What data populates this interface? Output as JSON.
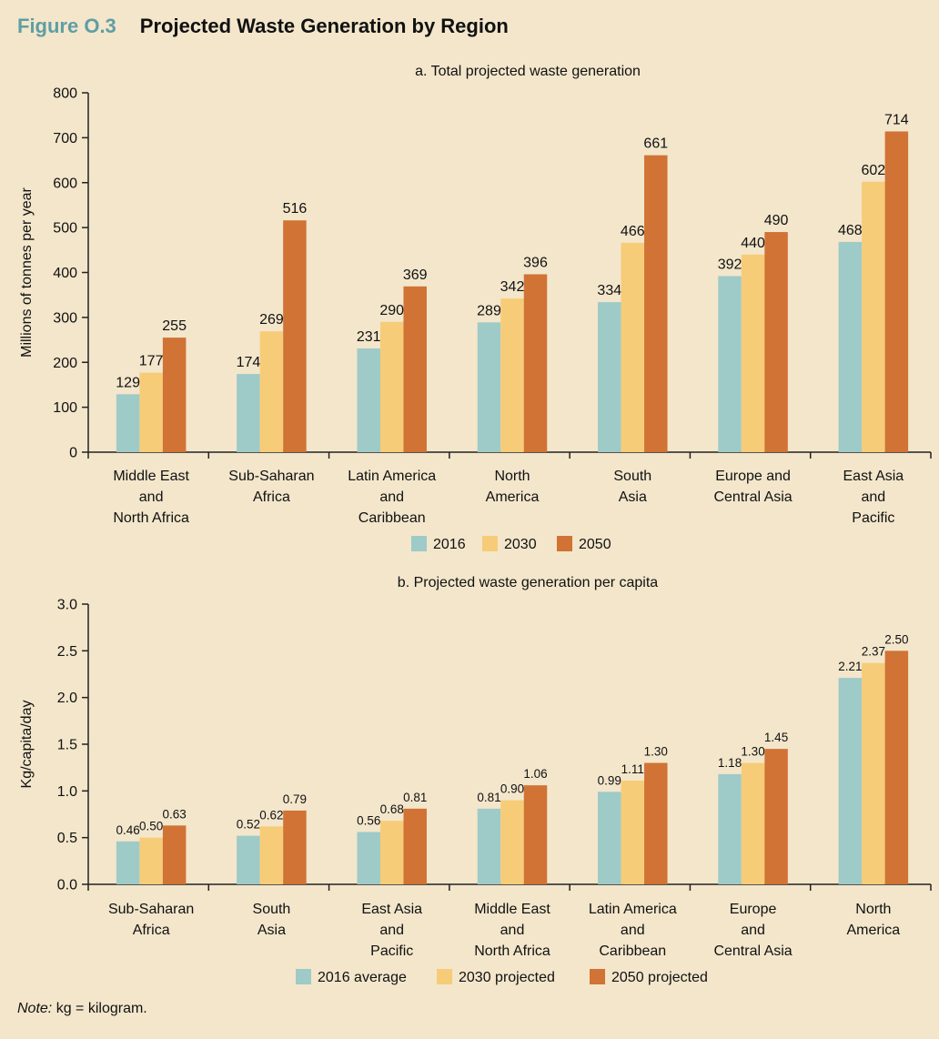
{
  "figure": {
    "number": "Figure O.3",
    "title": "Projected Waste Generation by Region"
  },
  "colors": {
    "background": "#f3e6cb",
    "s2016": "#9ecac8",
    "s2030": "#f7cc78",
    "s2050": "#d07335",
    "figure_number": "#5f9ea3"
  },
  "note": {
    "label": "Note:",
    "text": " kg = kilogram."
  },
  "chart_data": [
    {
      "type": "bar",
      "title": "a. Total projected waste generation",
      "ylabel": "Millions of tonnes per year",
      "ylim": [
        0,
        800
      ],
      "yticks": [
        0,
        100,
        200,
        300,
        400,
        500,
        600,
        700,
        800
      ],
      "grid": false,
      "legend_position": "bottom",
      "categories": [
        [
          "Middle East",
          "and",
          "North Africa"
        ],
        [
          "Sub-Saharan",
          "Africa"
        ],
        [
          "Latin America",
          "and",
          "Caribbean"
        ],
        [
          "North",
          "America"
        ],
        [
          "South",
          "Asia"
        ],
        [
          "Europe and",
          "Central Asia"
        ],
        [
          "East Asia",
          "and",
          "Pacific"
        ]
      ],
      "series": [
        {
          "name": "2016",
          "values": [
            129,
            174,
            231,
            289,
            334,
            392,
            468
          ]
        },
        {
          "name": "2030",
          "values": [
            177,
            269,
            290,
            342,
            466,
            440,
            602
          ]
        },
        {
          "name": "2050",
          "values": [
            255,
            516,
            369,
            396,
            661,
            490,
            714
          ]
        }
      ],
      "label_decimals": 0
    },
    {
      "type": "bar",
      "title": "b. Projected waste generation per capita",
      "ylabel": "Kg/capita/day",
      "ylim": [
        0,
        3.0
      ],
      "yticks": [
        0,
        0.5,
        1.0,
        1.5,
        2.0,
        2.5,
        3.0
      ],
      "grid": false,
      "legend_position": "bottom",
      "categories": [
        [
          "Sub-Saharan",
          "Africa"
        ],
        [
          "South",
          "Asia"
        ],
        [
          "East Asia",
          "and",
          "Pacific"
        ],
        [
          "Middle East",
          "and",
          "North Africa"
        ],
        [
          "Latin America",
          "and",
          "Caribbean"
        ],
        [
          "Europe",
          "and",
          "Central Asia"
        ],
        [
          "North",
          "America"
        ]
      ],
      "series": [
        {
          "name": "2016 average",
          "values": [
            0.46,
            0.52,
            0.56,
            0.81,
            0.99,
            1.18,
            2.21
          ]
        },
        {
          "name": "2030 projected",
          "values": [
            0.5,
            0.62,
            0.68,
            0.9,
            1.11,
            1.3,
            2.37
          ]
        },
        {
          "name": "2050 projected",
          "values": [
            0.63,
            0.79,
            0.81,
            1.06,
            1.3,
            1.45,
            2.5
          ]
        }
      ],
      "label_decimals": 2
    }
  ]
}
